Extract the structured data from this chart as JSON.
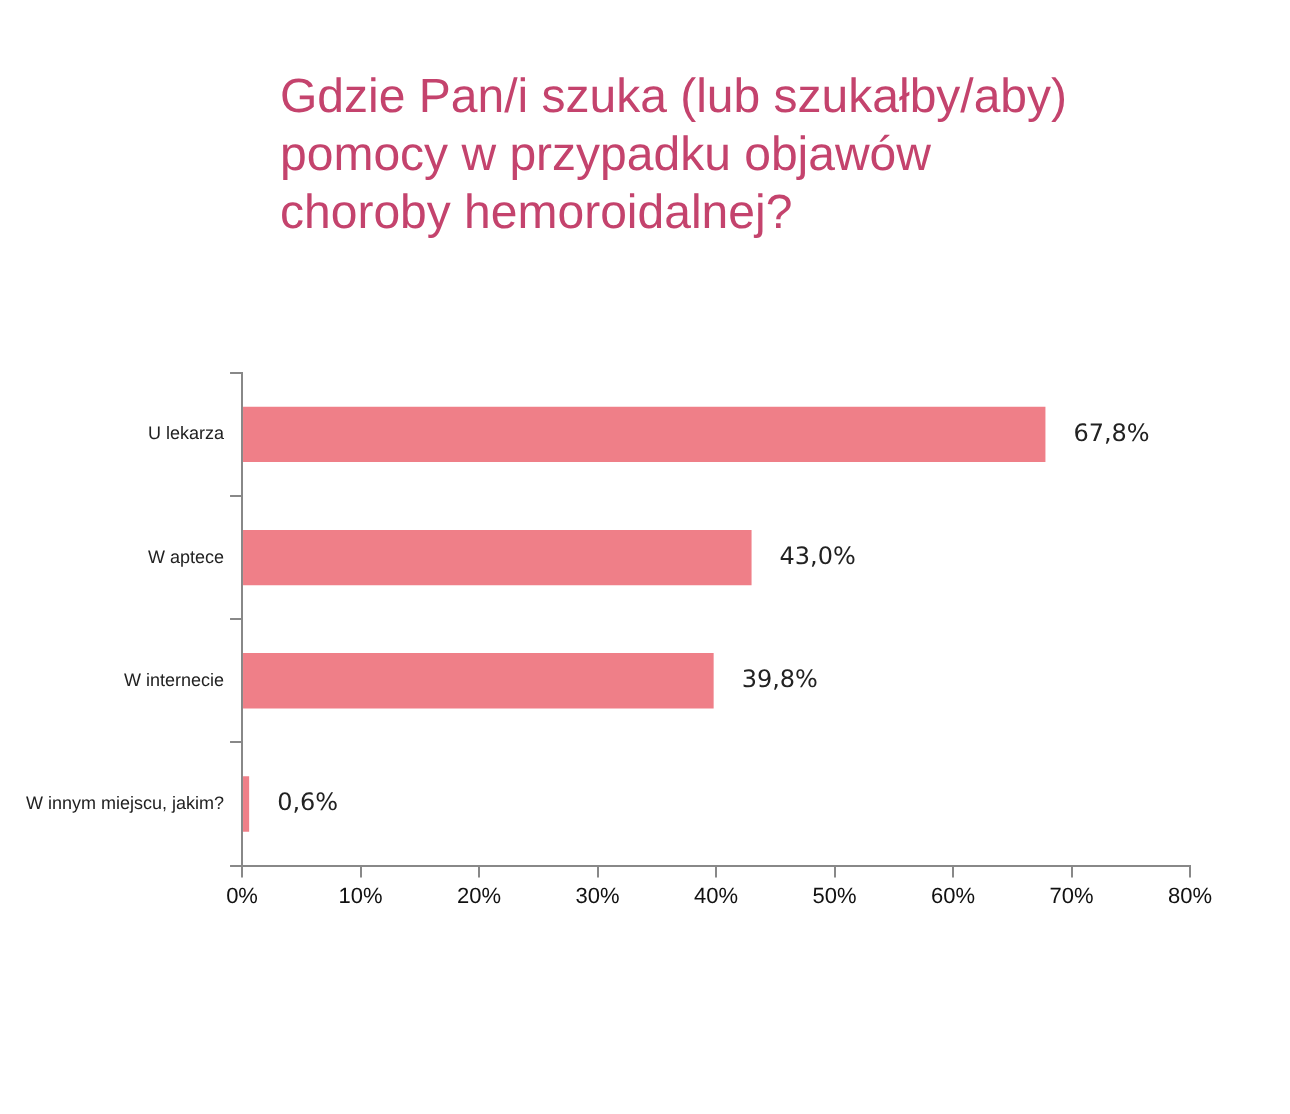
{
  "chart_data": {
    "type": "bar",
    "orientation": "horizontal",
    "title": "Gdzie Pan/i szuka (lub szukałby/aby) pomocy w przypadku objawów choroby hemoroidalnej?",
    "categories": [
      "U lekarza",
      "W aptece",
      "W internecie",
      "W innym miejscu, jakim?"
    ],
    "values": [
      67.8,
      43.0,
      39.8,
      0.6
    ],
    "value_labels": [
      "67,8%",
      "43,0%",
      "39,8%",
      "0,6%"
    ],
    "color": "#ef7f88",
    "xlim": [
      0,
      80
    ],
    "xticks": [
      {
        "value": 0,
        "label": "0%"
      },
      {
        "value": 10,
        "label": "10%"
      },
      {
        "value": 20,
        "label": "20%"
      },
      {
        "value": 30,
        "label": "30%"
      },
      {
        "value": 40,
        "label": "40%"
      },
      {
        "value": 50,
        "label": "50%"
      },
      {
        "value": 60,
        "label": "60%"
      },
      {
        "value": 70,
        "label": "70%"
      },
      {
        "value": 80,
        "label": "80%"
      }
    ]
  }
}
